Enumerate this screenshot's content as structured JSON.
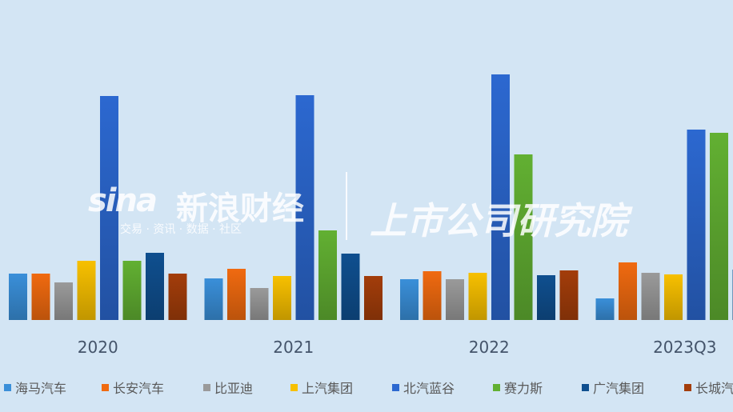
{
  "chart_data": {
    "type": "bar",
    "title": "",
    "xlabel": "",
    "ylabel": "",
    "categories": [
      "2020",
      "2021",
      "2022",
      "2023Q3"
    ],
    "ylim": [
      0,
      320
    ],
    "grid": false,
    "legend": "bottom",
    "series": [
      {
        "name": "海马汽车",
        "color": "#3a8fd9",
        "values": [
          58,
          52,
          51,
          27
        ]
      },
      {
        "name": "长安汽车",
        "color": "#f06a10",
        "values": [
          58,
          64,
          61,
          72
        ]
      },
      {
        "name": "比亚迪",
        "color": "#9a9a9a",
        "values": [
          47,
          40,
          51,
          59
        ]
      },
      {
        "name": "上汽集团",
        "color": "#f7c000",
        "values": [
          74,
          55,
          59,
          57
        ]
      },
      {
        "name": "北汽蓝谷",
        "color": "#2c68d0",
        "values": [
          280,
          281,
          307,
          238
        ]
      },
      {
        "name": "赛力斯",
        "color": "#62b032",
        "values": [
          74,
          112,
          207,
          234
        ]
      },
      {
        "name": "广汽集团",
        "color": "#0f4f8f",
        "values": [
          84,
          83,
          56,
          63
        ]
      },
      {
        "name": "长城汽车",
        "color": "#a33d0a",
        "values": [
          58,
          55,
          62,
          null
        ]
      }
    ]
  },
  "watermark": {
    "logo": "sina",
    "brand": "新浪财经",
    "tagline": "交易 · 资讯 · 数据 · 社区",
    "institute": "上市公司研究院"
  }
}
